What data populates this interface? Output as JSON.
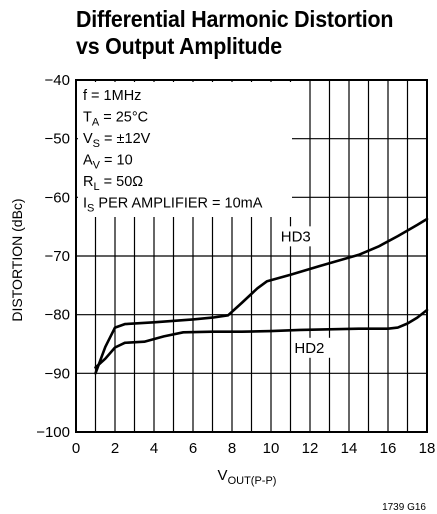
{
  "chart_data": {
    "type": "line",
    "title_lines": [
      "Differential Harmonic Distortion",
      "vs Output Amplitude"
    ],
    "ylabel": "DISTORTION (dBc)",
    "xlabel_main": "V",
    "xlabel_sub": "OUT(P-P)",
    "xlim": [
      0,
      18
    ],
    "ylim": [
      -100,
      -40
    ],
    "x_ticks": [
      0,
      2,
      4,
      6,
      8,
      10,
      12,
      14,
      16,
      18
    ],
    "y_ticks": [
      -100,
      -90,
      -80,
      -70,
      -60,
      -50,
      -40
    ],
    "x_tick_labels": [
      "0",
      "2",
      "4",
      "6",
      "8",
      "10",
      "12",
      "14",
      "16",
      "18"
    ],
    "y_tick_labels": [
      "−100",
      "−90",
      "−80",
      "−70",
      "−60",
      "−50",
      "−40"
    ],
    "grid": true,
    "conditions": [
      {
        "main": "f = 1MHz",
        "sub": "",
        "rest": ""
      },
      {
        "main": "T",
        "sub": "A",
        "rest": " = 25°C"
      },
      {
        "main": "V",
        "sub": "S",
        "rest": " = ±12V"
      },
      {
        "main": "A",
        "sub": "V",
        "rest": " = 10"
      },
      {
        "main": "R",
        "sub": "L",
        "rest": " = 50Ω"
      },
      {
        "main": "I",
        "sub": "S",
        "rest": " PER AMPLIFIER = 10mA"
      }
    ],
    "series": [
      {
        "name": "HD3",
        "x": [
          1,
          1.5,
          2,
          2.5,
          4,
          6,
          7,
          7.8,
          8.5,
          9.3,
          9.8,
          11,
          12.5,
          14.5,
          15.5,
          16.5,
          17.5,
          18
        ],
        "y": [
          -90,
          -85.5,
          -82.2,
          -81.6,
          -81.3,
          -80.8,
          -80.5,
          -80.1,
          -78,
          -75.5,
          -74.3,
          -73.2,
          -71.7,
          -69.8,
          -68.4,
          -66.6,
          -64.7,
          -63.7
        ]
      },
      {
        "name": "HD2",
        "x": [
          1,
          1.5,
          2,
          2.5,
          3.5,
          4.5,
          5.5,
          7,
          8.5,
          10,
          11.5,
          13,
          14.5,
          16,
          16.5,
          17,
          17.5,
          18
        ],
        "y": [
          -89,
          -87.5,
          -85.6,
          -84.8,
          -84.6,
          -83.7,
          -83,
          -82.9,
          -82.9,
          -82.8,
          -82.6,
          -82.5,
          -82.4,
          -82.4,
          -82.2,
          -81.5,
          -80.5,
          -79.2
        ]
      }
    ],
    "figure_id": "1739 G16"
  }
}
